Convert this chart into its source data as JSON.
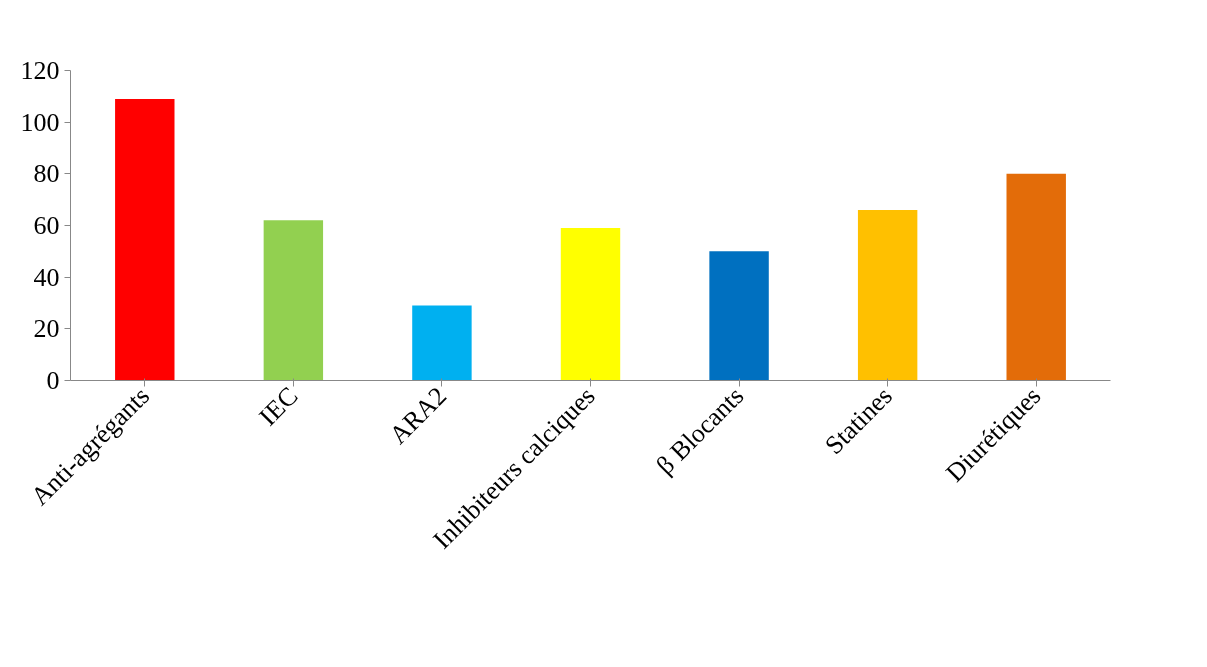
{
  "chart_data": {
    "type": "bar",
    "categories": [
      "Anti-agrégants",
      "IEC",
      "ARA2",
      "Inhibiteurs calciques",
      "β Blocants",
      "Statines",
      "Diurétiques"
    ],
    "values": [
      109,
      62,
      29,
      59,
      50,
      66,
      80
    ],
    "colors": [
      "#ff0000",
      "#92d050",
      "#00b0f0",
      "#ffff00",
      "#0070c0",
      "#ffc000",
      "#e36c09"
    ],
    "ylim": [
      0,
      120
    ],
    "yticks": [
      0,
      20,
      40,
      60,
      80,
      100,
      120
    ],
    "grid": false
  }
}
